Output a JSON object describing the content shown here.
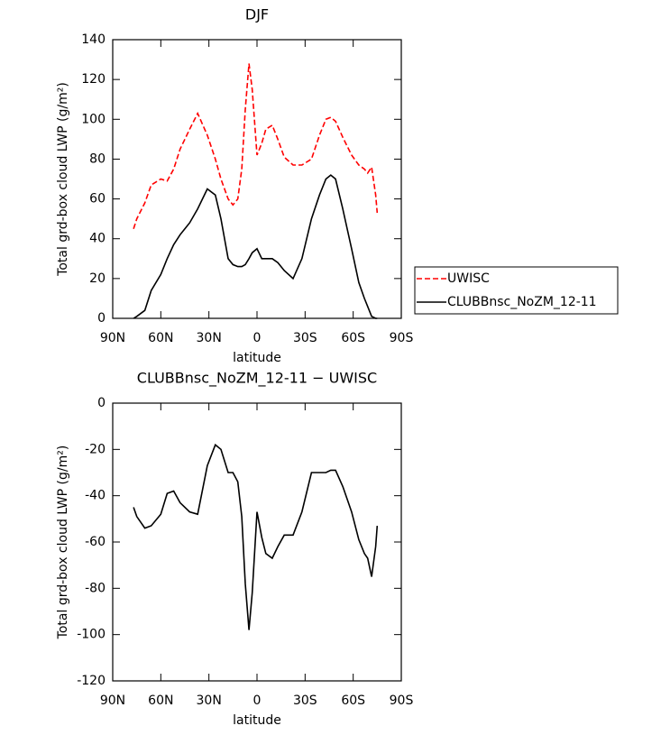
{
  "chart_data": [
    {
      "type": "line",
      "title": "DJF",
      "xlabel": "latitude",
      "ylabel": "Total grd-box cloud LWP (g/m²)",
      "x": [
        77,
        75,
        70,
        66,
        60,
        56,
        52,
        48,
        42,
        37,
        31,
        26,
        22.5,
        18,
        15,
        12,
        9.5,
        7.3,
        5,
        3,
        0,
        -3,
        -5.5,
        -9.5,
        -13,
        -17,
        -22.5,
        -28,
        -34,
        -39,
        -43,
        -46,
        -49,
        -53.5,
        -59,
        -63.5,
        -67,
        -69,
        -71.5,
        -74,
        -75
      ],
      "series": [
        {
          "name": "UWISC",
          "color": "#ff0000",
          "linestyle": "dashed",
          "values": [
            45,
            50,
            58,
            67,
            70,
            69,
            75,
            85,
            95,
            103,
            92,
            80,
            70,
            60,
            57,
            60,
            75,
            105,
            128,
            115,
            82,
            88,
            95,
            97,
            90,
            81,
            77,
            77,
            80,
            92,
            100,
            101,
            99,
            91,
            82,
            77,
            75,
            73,
            76,
            62,
            53
          ]
        },
        {
          "name": "CLUBBnsc_NoZM_12-11",
          "color": "#000000",
          "linestyle": "solid",
          "values": [
            0,
            1,
            4,
            14,
            22,
            30,
            37,
            42,
            48,
            55,
            65,
            62,
            50,
            30,
            27,
            26,
            26,
            27,
            30,
            33,
            35,
            30,
            30,
            30,
            28,
            24,
            20,
            30,
            50,
            62,
            70,
            72,
            70,
            55,
            35,
            18,
            10,
            6,
            1,
            0,
            0
          ]
        }
      ],
      "xlim": [
        90,
        -90
      ],
      "xticks": [
        {
          "value": 90,
          "label": "90N"
        },
        {
          "value": 60,
          "label": "60N"
        },
        {
          "value": 30,
          "label": "30N"
        },
        0,
        {
          "value": -30,
          "label": "30S"
        },
        {
          "value": -60,
          "label": "60S"
        },
        {
          "value": -90,
          "label": "90S"
        }
      ],
      "ylim": [
        0,
        140
      ],
      "yticks": [
        0,
        20,
        40,
        60,
        80,
        100,
        120,
        140
      ],
      "legend": "right"
    },
    {
      "type": "line",
      "title": "CLUBBnsc_NoZM_12-11 − UWISC",
      "xlabel": "latitude",
      "ylabel": "Total grd-box cloud LWP (g/m²)",
      "x": [
        77,
        75,
        70,
        66,
        60,
        56,
        52,
        48,
        42,
        37,
        31,
        26,
        22.5,
        18,
        15,
        12,
        9.5,
        7.3,
        5,
        3,
        0,
        -3,
        -5.5,
        -9.5,
        -13,
        -17,
        -22.5,
        -28,
        -34,
        -39,
        -43,
        -46,
        -49,
        -53.5,
        -59,
        -63.5,
        -67,
        -69,
        -71.5,
        -74,
        -75
      ],
      "series": [
        {
          "color": "#000000",
          "linestyle": "solid",
          "values": [
            -45,
            -49,
            -54,
            -53,
            -48,
            -39,
            -38,
            -43,
            -47,
            -48,
            -27,
            -18,
            -20,
            -30,
            -30,
            -34,
            -49,
            -78,
            -98,
            -82,
            -47,
            -58,
            -65,
            -67,
            -62,
            -57,
            -57,
            -47,
            -30,
            -30,
            -30,
            -29,
            -29,
            -36,
            -47,
            -59,
            -65,
            -67,
            -75,
            -62,
            -53
          ]
        }
      ],
      "xlim": [
        90,
        -90
      ],
      "xticks": [
        {
          "value": 90,
          "label": "90N"
        },
        {
          "value": 60,
          "label": "60N"
        },
        {
          "value": 30,
          "label": "30N"
        },
        0,
        {
          "value": -30,
          "label": "30S"
        },
        {
          "value": -60,
          "label": "60S"
        },
        {
          "value": -90,
          "label": "90S"
        }
      ],
      "ylim": [
        -120,
        0
      ],
      "yticks": [
        -120,
        -100,
        -80,
        -60,
        -40,
        -20,
        0
      ]
    }
  ]
}
